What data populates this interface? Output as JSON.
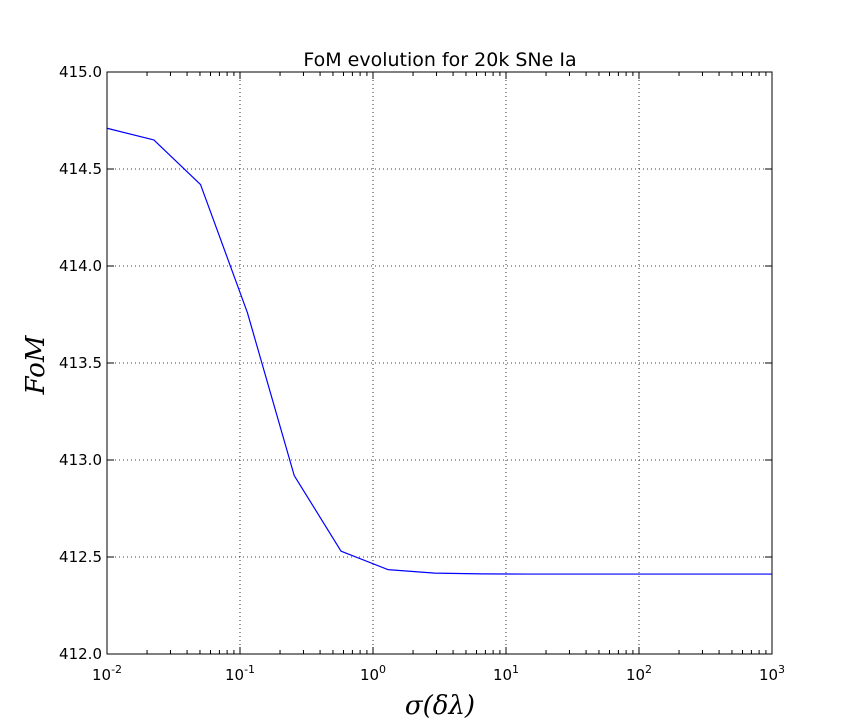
{
  "chart_data": {
    "type": "line",
    "title": "FoM evolution for 20k SNe Ia",
    "xlabel": "σ(δλ)",
    "ylabel": "FoM",
    "xscale": "log",
    "xlim": [
      0.01,
      1000
    ],
    "ylim": [
      412.0,
      415.0
    ],
    "grid": true,
    "x_ticks": [
      {
        "value": 0.01,
        "base": "10",
        "exp": "-2"
      },
      {
        "value": 0.1,
        "base": "10",
        "exp": "-1"
      },
      {
        "value": 1,
        "base": "10",
        "exp": "0"
      },
      {
        "value": 10,
        "base": "10",
        "exp": "1"
      },
      {
        "value": 100,
        "base": "10",
        "exp": "2"
      },
      {
        "value": 1000,
        "base": "10",
        "exp": "3"
      }
    ],
    "y_ticks": [
      "412.0",
      "412.5",
      "413.0",
      "413.5",
      "414.0",
      "414.5",
      "415.0"
    ],
    "series": [
      {
        "color": "#0000ff",
        "x": [
          0.01,
          0.0225,
          0.0505,
          0.1136,
          0.2556,
          0.5751,
          1.294,
          2.912,
          6.552,
          14.74,
          33.17,
          74.64,
          167.9,
          377.9,
          1000
        ],
        "y": [
          414.71,
          414.65,
          414.42,
          413.76,
          412.92,
          412.53,
          412.435,
          412.417,
          412.413,
          412.412,
          412.412,
          412.412,
          412.412,
          412.412,
          412.412
        ]
      }
    ]
  }
}
